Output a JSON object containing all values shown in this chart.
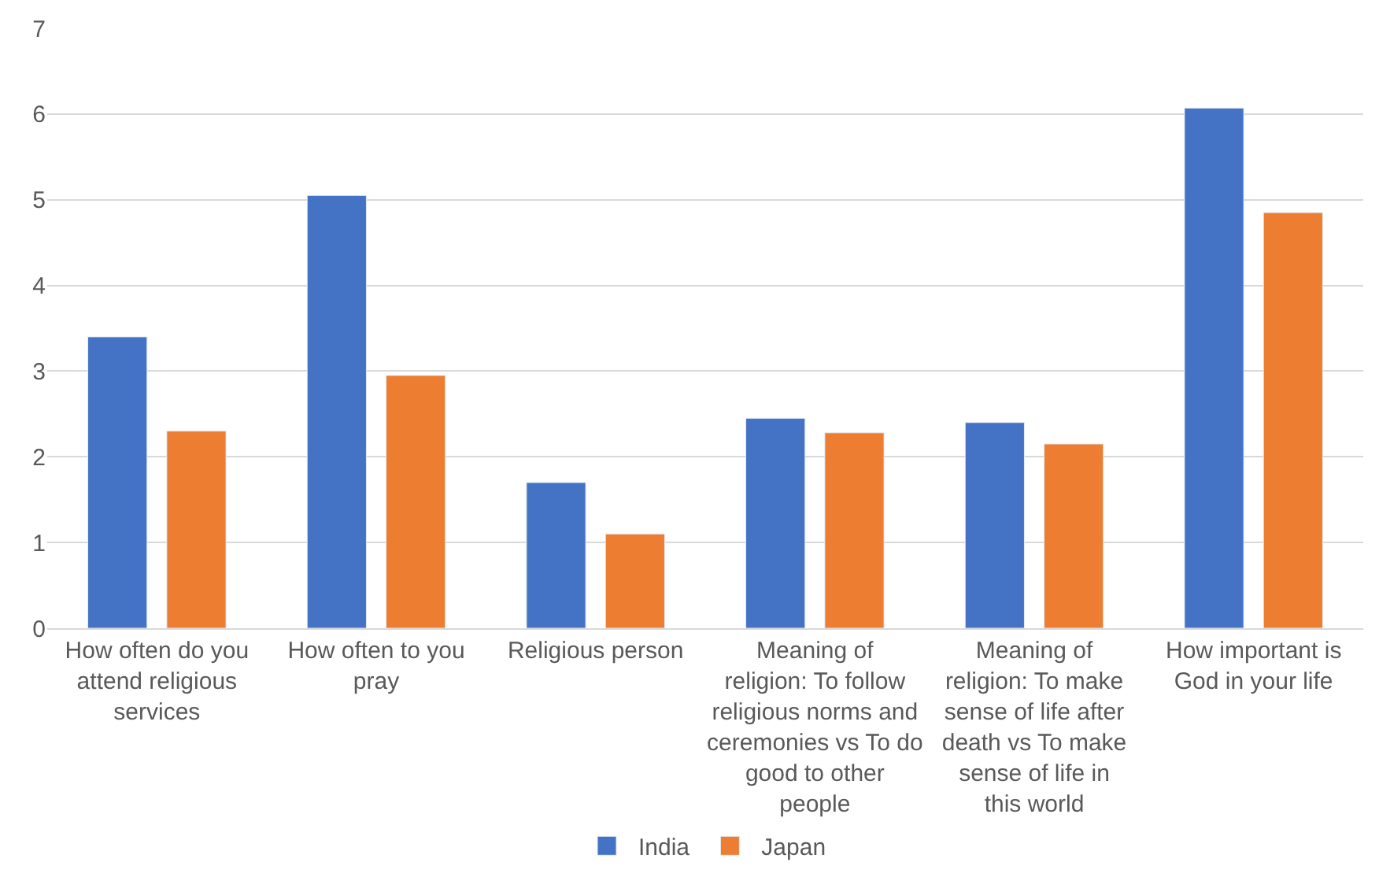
{
  "chart_data": {
    "type": "bar",
    "categories": [
      "How often do you attend religious services",
      "How often to you pray",
      "Religious person",
      "Meaning of religion: To follow religious norms and ceremonies vs To do good to other people",
      "Meaning of religion: To make sense of life after death vs To make sense of life in this world",
      "How important is God in your life"
    ],
    "series": [
      {
        "name": "India",
        "color": "#4472c4",
        "values": [
          3.4,
          5.05,
          1.7,
          2.45,
          2.4,
          6.07
        ]
      },
      {
        "name": "Japan",
        "color": "#ed7d31",
        "values": [
          2.3,
          2.95,
          1.1,
          2.28,
          2.15,
          4.85
        ]
      }
    ],
    "ylim": [
      0,
      7
    ],
    "yticks": [
      0,
      1,
      2,
      3,
      4,
      5,
      6,
      7
    ],
    "grid": "y",
    "legend": "bottom"
  }
}
